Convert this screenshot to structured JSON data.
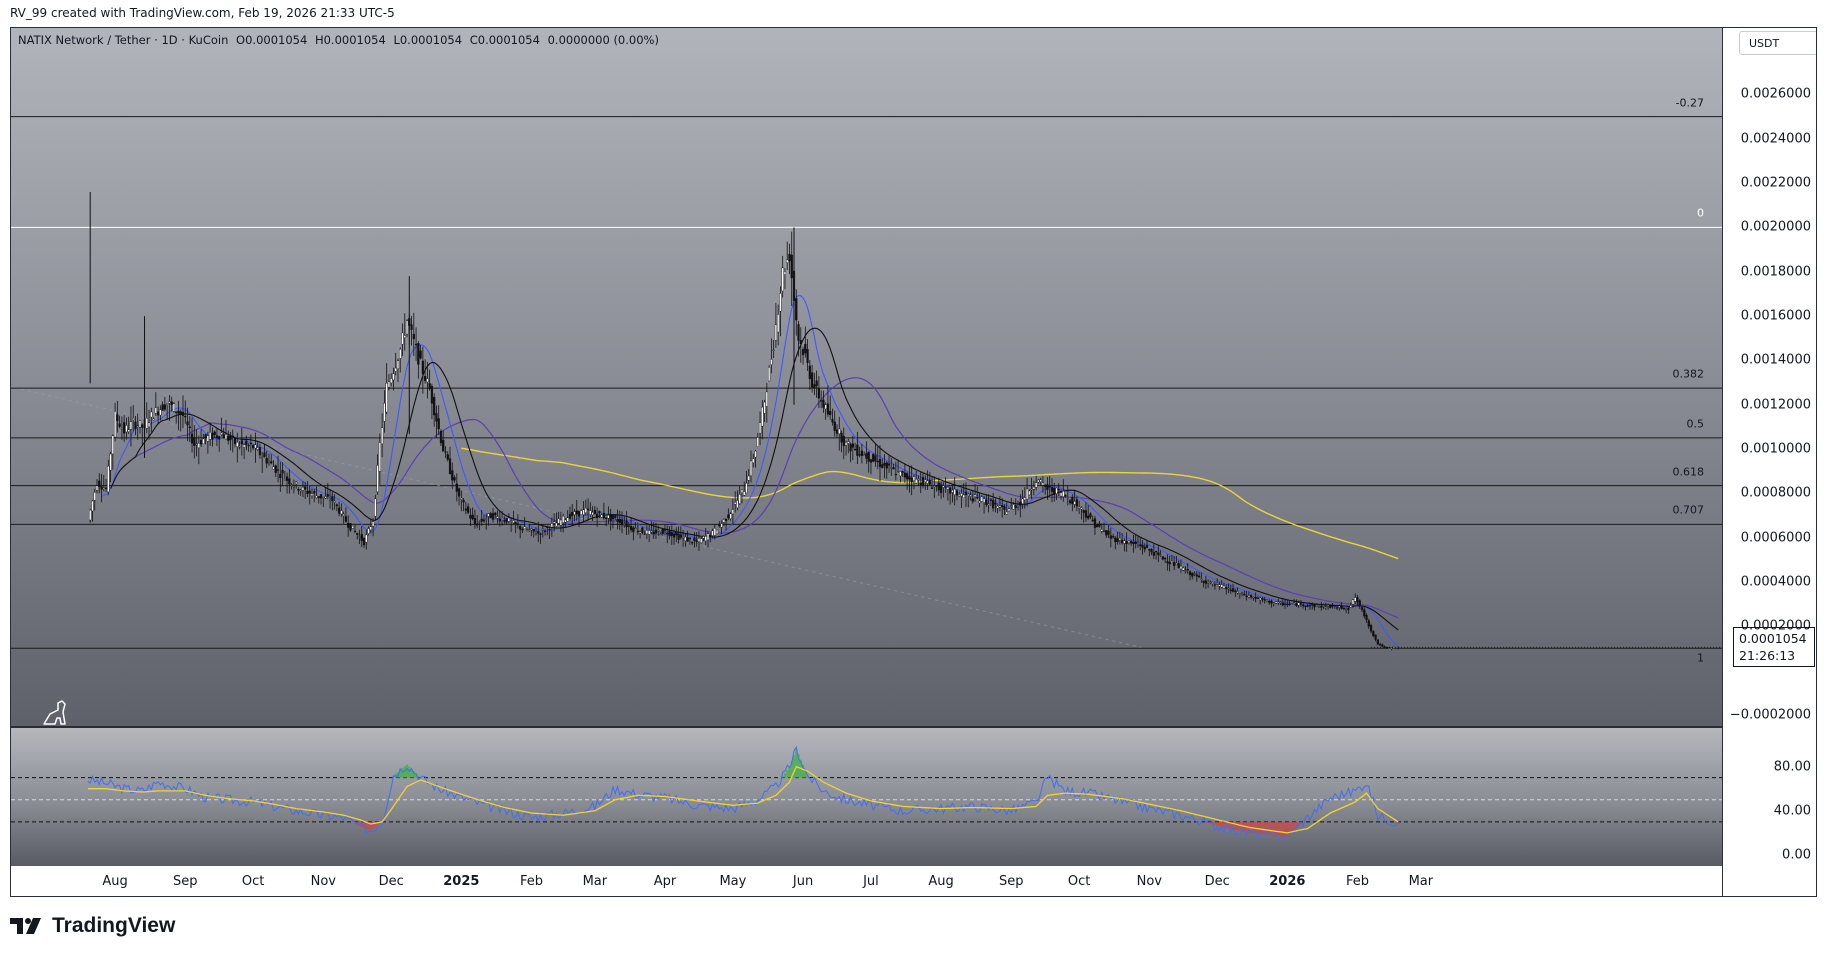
{
  "header": {
    "created_by": "RV_99 created with TradingView.com, Feb 19, 2026 21:33 UTC-5"
  },
  "legend": {
    "symbol": "NATIX Network / Tether · 1D · KuCoin",
    "open": "O0.0001054",
    "high": "H0.0001054",
    "low": "L0.0001054",
    "close": "C0.0001054",
    "change": "0.0000000 (0.00%)"
  },
  "currency_button": "USDT",
  "last_price": {
    "price": "0.0001054",
    "countdown": "21:26:13"
  },
  "brand": "TradingView",
  "colors": {
    "ma_blue": "#3d5afe",
    "ma_purple": "#5b3fb0",
    "ma_yellow": "#e8d53a",
    "ma_black": "#111111",
    "rsi_line": "#3f6ef5",
    "rsi_ma": "#f2d233",
    "overbought_fill": "#4caf50",
    "oversold_fill": "#e53935",
    "fib_zero_line": "#ffffff"
  },
  "chart_data": [
    {
      "type": "line",
      "subtype": "candlestick-approx",
      "title": "NATIX Network / Tether · 1D · KuCoin",
      "x": [
        "2024-07-20",
        "2024-07-24",
        "2024-07-28",
        "2024-08-01",
        "2024-08-05",
        "2024-08-09",
        "2024-08-13",
        "2024-08-18",
        "2024-08-24",
        "2024-08-31",
        "2024-09-05",
        "2024-09-10",
        "2024-09-17",
        "2024-09-24",
        "2024-10-01",
        "2024-10-08",
        "2024-10-15",
        "2024-10-22",
        "2024-10-29",
        "2024-11-05",
        "2024-11-12",
        "2024-11-19",
        "2024-11-23",
        "2024-11-26",
        "2024-11-29",
        "2024-12-02",
        "2024-12-05",
        "2024-12-08",
        "2024-12-11",
        "2024-12-14",
        "2024-12-18",
        "2024-12-24",
        "2024-12-31",
        "2025-01-07",
        "2025-01-14",
        "2025-01-21",
        "2025-01-28",
        "2025-02-04",
        "2025-02-11",
        "2025-02-18",
        "2025-02-25",
        "2025-03-04",
        "2025-03-11",
        "2025-03-18",
        "2025-03-25",
        "2025-04-01",
        "2025-04-08",
        "2025-04-15",
        "2025-04-22",
        "2025-04-29",
        "2025-05-06",
        "2025-05-11",
        "2025-05-15",
        "2025-05-19",
        "2025-05-23",
        "2025-05-26",
        "2025-05-28",
        "2025-05-30",
        "2025-06-02",
        "2025-06-05",
        "2025-06-09",
        "2025-06-14",
        "2025-06-20",
        "2025-06-27",
        "2025-07-04",
        "2025-07-11",
        "2025-07-18",
        "2025-07-25",
        "2025-08-01",
        "2025-08-08",
        "2025-08-15",
        "2025-08-22",
        "2025-08-29",
        "2025-09-05",
        "2025-09-12",
        "2025-09-17",
        "2025-09-24",
        "2025-10-01",
        "2025-10-08",
        "2025-10-15",
        "2025-10-22",
        "2025-10-29",
        "2025-11-05",
        "2025-11-12",
        "2025-11-19",
        "2025-11-26",
        "2025-12-03",
        "2025-12-10",
        "2025-12-17",
        "2025-12-24",
        "2025-12-31",
        "2026-01-07",
        "2026-01-14",
        "2026-01-21",
        "2026-01-28",
        "2026-01-31",
        "2026-02-04",
        "2026-02-07",
        "2026-02-10",
        "2026-02-14",
        "2026-02-19"
      ],
      "series": [
        {
          "values": [
            0.00068,
            0.00085,
            0.00082,
            0.00115,
            0.00108,
            0.00112,
            0.0011,
            0.00116,
            0.00121,
            0.00115,
            0.00102,
            0.00105,
            0.00107,
            0.00102,
            0.00101,
            0.00094,
            0.00087,
            0.00082,
            0.00079,
            0.00077,
            0.00066,
            0.00058,
            0.00068,
            0.00102,
            0.00128,
            0.00136,
            0.00145,
            0.00158,
            0.00148,
            0.00138,
            0.00127,
            0.001,
            0.00078,
            0.00066,
            0.0007,
            0.00068,
            0.00064,
            0.00062,
            0.00066,
            0.0007,
            0.00072,
            0.0007,
            0.00068,
            0.00064,
            0.00062,
            0.00063,
            0.0006,
            0.00058,
            0.00062,
            0.0007,
            0.00082,
            0.001,
            0.00122,
            0.00148,
            0.0018,
            0.00188,
            0.00168,
            0.0015,
            0.00142,
            0.0013,
            0.00122,
            0.00112,
            0.00102,
            0.00098,
            0.00094,
            0.0009,
            0.00087,
            0.00085,
            0.00082,
            0.0008,
            0.00078,
            0.00076,
            0.00072,
            0.00076,
            0.00086,
            0.00082,
            0.0008,
            0.00074,
            0.00066,
            0.0006,
            0.00058,
            0.00056,
            0.00052,
            0.00048,
            0.00044,
            0.0004,
            0.00038,
            0.00035,
            0.00033,
            0.00031,
            0.0003,
            0.0003,
            0.00029,
            0.00029,
            0.00028,
            0.00033,
            0.00025,
            0.00018,
            0.00012,
            0.0001,
            0.0001054
          ]
        }
      ],
      "spikes": [
        {
          "x": "2024-07-21",
          "high": 0.00216
        },
        {
          "x": "2024-08-14",
          "high": 0.0016
        },
        {
          "x": "2024-12-09",
          "high": 0.00178
        },
        {
          "x": "2025-05-28",
          "high": 0.002
        }
      ],
      "ylim": [
        -0.00025,
        0.0029
      ],
      "y_ticks": [
        "0.0026000",
        "0.0024000",
        "0.0022000",
        "0.0020000",
        "0.0018000",
        "0.0016000",
        "0.0014000",
        "0.0012000",
        "0.0010000",
        "0.0008000",
        "0.0006000",
        "0.0004000",
        "0.0002000",
        "−0.0002000"
      ],
      "x_ticks": [
        "Aug",
        "Sep",
        "Oct",
        "Nov",
        "Dec",
        "2025",
        "Feb",
        "Mar",
        "Apr",
        "May",
        "Jun",
        "Jul",
        "Aug",
        "Sep",
        "Oct",
        "Nov",
        "Dec",
        "2026",
        "Feb",
        "Mar"
      ],
      "fib_levels": [
        {
          "label": "-0.27",
          "price": 0.0025
        },
        {
          "label": "0",
          "price": 0.002
        },
        {
          "label": "0.382",
          "price": 0.001275
        },
        {
          "label": "0.5",
          "price": 0.00105
        },
        {
          "label": "0.618",
          "price": 0.000835
        },
        {
          "label": "0.707",
          "price": 0.00066
        },
        {
          "label": "1",
          "price": 0.000101
        }
      ]
    },
    {
      "type": "line",
      "title": "RSI",
      "ylim": [
        -10,
        115
      ],
      "y_ticks": [
        "80.00",
        "40.00",
        "0.00"
      ],
      "bands": {
        "upper": 70,
        "middle": 50,
        "lower": 30
      },
      "x": [
        "2024-07-20",
        "2024-07-28",
        "2024-08-05",
        "2024-08-13",
        "2024-08-20",
        "2024-09-01",
        "2024-09-10",
        "2024-09-20",
        "2024-10-01",
        "2024-10-10",
        "2024-10-20",
        "2024-11-01",
        "2024-11-10",
        "2024-11-17",
        "2024-11-22",
        "2024-11-27",
        "2024-12-02",
        "2024-12-08",
        "2024-12-14",
        "2024-12-22",
        "2025-01-01",
        "2025-01-10",
        "2025-01-20",
        "2025-02-01",
        "2025-02-15",
        "2025-03-01",
        "2025-03-10",
        "2025-03-20",
        "2025-04-01",
        "2025-04-15",
        "2025-05-01",
        "2025-05-12",
        "2025-05-20",
        "2025-05-26",
        "2025-05-29",
        "2025-06-03",
        "2025-06-10",
        "2025-06-20",
        "2025-07-01",
        "2025-07-15",
        "2025-08-01",
        "2025-08-15",
        "2025-09-01",
        "2025-09-12",
        "2025-09-17",
        "2025-09-25",
        "2025-10-05",
        "2025-10-20",
        "2025-11-01",
        "2025-11-15",
        "2025-11-25",
        "2025-12-05",
        "2025-12-15",
        "2025-12-25",
        "2026-01-01",
        "2026-01-10",
        "2026-01-20",
        "2026-01-31",
        "2026-02-05",
        "2026-02-10",
        "2026-02-19"
      ],
      "series": [
        {
          "values": [
            68,
            65,
            60,
            58,
            66,
            60,
            52,
            50,
            48,
            44,
            40,
            36,
            34,
            26,
            22,
            30,
            72,
            82,
            70,
            60,
            52,
            46,
            40,
            34,
            38,
            44,
            60,
            55,
            52,
            45,
            42,
            50,
            62,
            80,
            96,
            72,
            58,
            50,
            45,
            40,
            42,
            44,
            40,
            48,
            70,
            58,
            56,
            48,
            42,
            36,
            30,
            24,
            20,
            18,
            16,
            34,
            52,
            58,
            66,
            36,
            28
          ]
        },
        {
          "values": [
            60,
            60,
            58,
            57,
            58,
            58,
            54,
            51,
            49,
            46,
            42,
            39,
            36,
            32,
            28,
            30,
            44,
            62,
            68,
            62,
            55,
            49,
            43,
            38,
            36,
            40,
            50,
            54,
            53,
            49,
            45,
            47,
            54,
            66,
            80,
            76,
            66,
            56,
            49,
            44,
            42,
            43,
            42,
            44,
            54,
            56,
            55,
            51,
            46,
            40,
            35,
            30,
            25,
            22,
            20,
            24,
            38,
            48,
            56,
            42,
            30
          ]
        }
      ]
    }
  ]
}
